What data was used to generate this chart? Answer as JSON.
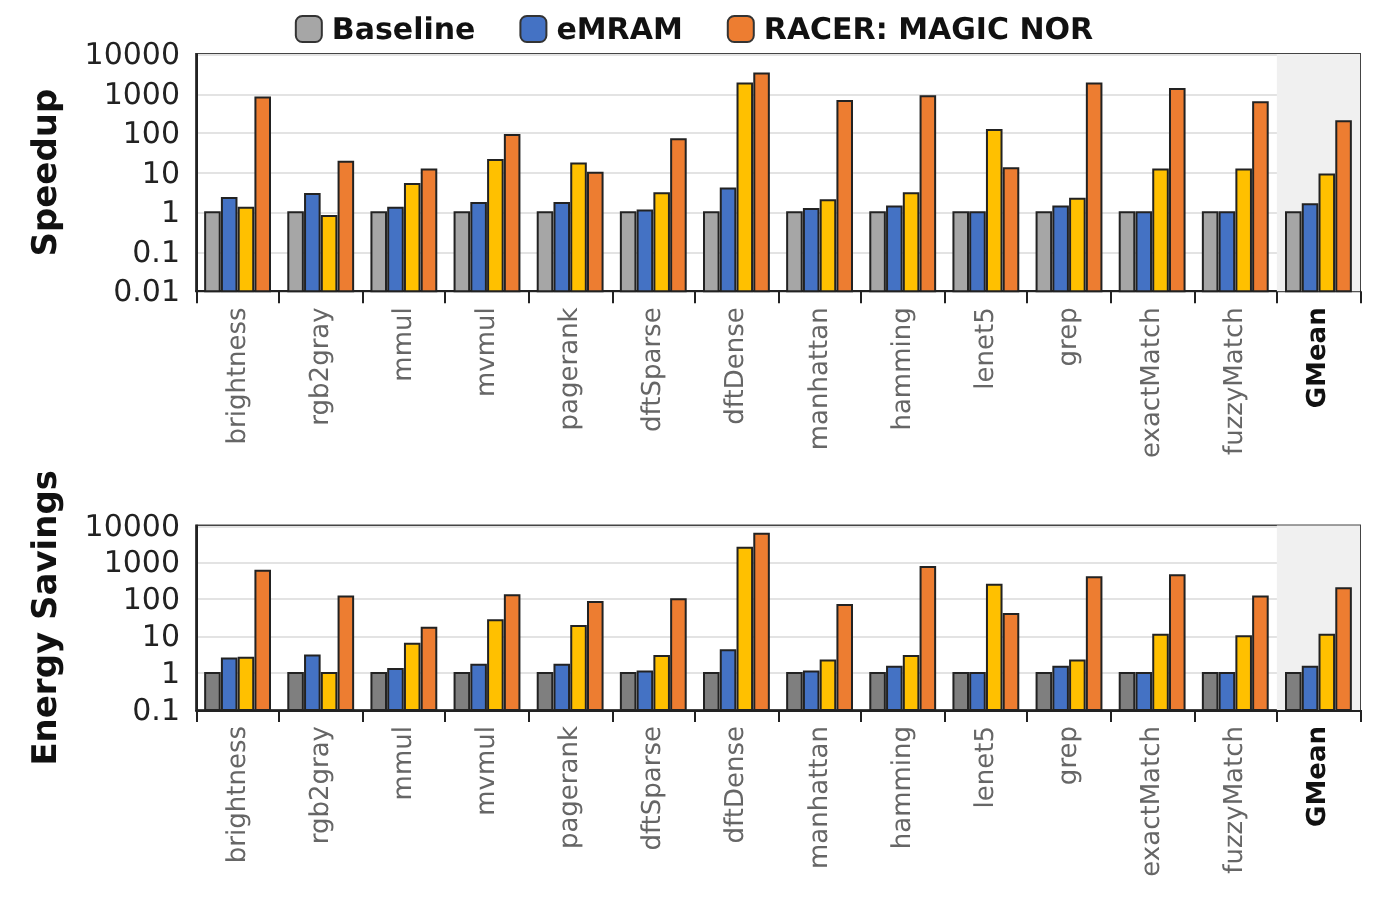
{
  "chart_data": [
    {
      "type": "bar",
      "ylabel": "Speedup",
      "legend": "top",
      "grid": "y",
      "log": "y",
      "ylim": [
        0.01,
        10000
      ],
      "yticks": [
        0.01,
        0.1,
        1,
        10,
        100,
        1000,
        10000
      ],
      "categories": [
        "brightness",
        "rgb2gray",
        "mmul",
        "mvmul",
        "pagerank",
        "dftSparse",
        "dftDense",
        "manhattan",
        "hamming",
        "lenet5",
        "grep",
        "exactMatch",
        "fuzzyMatch",
        "GMean"
      ],
      "bands": [
        {
          "axis": "x",
          "from": "GMean",
          "to": "GMean",
          "color": "#f0f0f0"
        }
      ],
      "series": [
        {
          "name": "Baseline",
          "color": "#a6a6a6",
          "values": [
            1,
            1,
            1,
            1,
            1,
            1,
            1,
            1,
            1,
            1,
            1,
            1,
            1,
            1
          ]
        },
        {
          "name": "eMRAM",
          "color": "#4472c4",
          "values": [
            2.3,
            2.9,
            1.3,
            1.7,
            1.7,
            1.1,
            4,
            1.2,
            1.4,
            1,
            1.4,
            1,
            1,
            1.6
          ]
        },
        {
          "color": "#ffc000",
          "values": [
            1.3,
            0.8,
            5.2,
            21,
            17,
            3,
            1800,
            2,
            3,
            120,
            2.2,
            12,
            12,
            9
          ]
        },
        {
          "name": "RACER: MAGIC NOR",
          "color": "#ed7d31",
          "values": [
            800,
            19,
            12,
            90,
            10,
            70,
            3200,
            650,
            850,
            13,
            1800,
            1300,
            600,
            200
          ]
        }
      ]
    },
    {
      "type": "bar",
      "ylabel": "Energy Savings",
      "legend": false,
      "grid": "y",
      "log": "y",
      "ylim": [
        0.1,
        10000
      ],
      "yticks": [
        0.1,
        1,
        10,
        100,
        1000,
        10000
      ],
      "categories": [
        "brightness",
        "rgb2gray",
        "mmul",
        "mvmul",
        "pagerank",
        "dftSparse",
        "dftDense",
        "manhattan",
        "hamming",
        "lenet5",
        "grep",
        "exactMatch",
        "fuzzyMatch",
        "GMean"
      ],
      "bands": [
        {
          "axis": "x",
          "from": "GMean",
          "to": "GMean",
          "color": "#f0f0f0"
        }
      ],
      "series": [
        {
          "color": "#7f7f7f",
          "values": [
            1,
            1,
            1,
            1,
            1,
            1,
            1,
            1,
            1,
            1,
            1,
            1,
            1,
            1
          ]
        },
        {
          "color": "#4472c4",
          "values": [
            2.5,
            3,
            1.3,
            1.7,
            1.7,
            1.1,
            4.2,
            1.1,
            1.5,
            1,
            1.5,
            1,
            1,
            1.5
          ]
        },
        {
          "color": "#ffc000",
          "values": [
            2.6,
            1,
            6.3,
            27,
            19,
            2.9,
            2500,
            2.2,
            2.9,
            250,
            2.2,
            11,
            10,
            11
          ]
        },
        {
          "color": "#ed7d31",
          "values": [
            600,
            120,
            17,
            130,
            85,
            100,
            6000,
            70,
            750,
            40,
            400,
            450,
            120,
            200
          ]
        }
      ]
    }
  ]
}
